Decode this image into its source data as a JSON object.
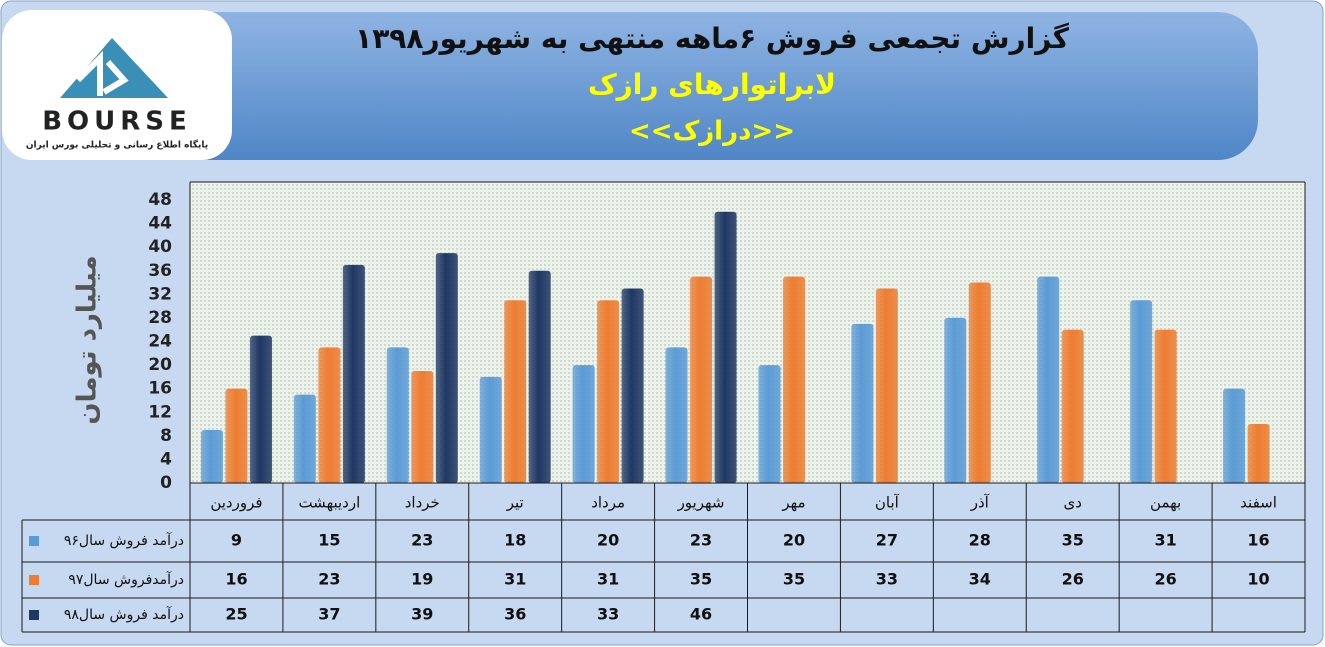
{
  "chart_data": {
    "type": "bar",
    "title": "گزارش تجمعی فروش ۶ماهه منتهی به شهریور۱۳۹۸",
    "subtitle": "لابراتوارهای رازک",
    "annotation": "<<درازک>>",
    "y_label": "میلیارد تومان",
    "categories": [
      "فروردین",
      "اردیبهشت",
      "خرداد",
      "تیر",
      "مرداد",
      "شهریور",
      "مهر",
      "آبان",
      "آذر",
      "دی",
      "بهمن",
      "اسفند"
    ],
    "series": [
      {
        "name": "درآمد فروش سال۹۶",
        "color": "#5b9bd5",
        "values": [
          9,
          15,
          23,
          18,
          20,
          23,
          20,
          27,
          28,
          35,
          31,
          16
        ]
      },
      {
        "name": "درآمدفروش سال۹۷",
        "color": "#ed7d31",
        "values": [
          16,
          23,
          19,
          31,
          31,
          35,
          35,
          33,
          34,
          26,
          26,
          10
        ]
      },
      {
        "name": "درآمد فروش سال۹۸",
        "color": "#1f3864",
        "values": [
          25,
          37,
          39,
          36,
          33,
          46,
          null,
          null,
          null,
          null,
          null,
          null
        ]
      }
    ],
    "ylim": [
      0,
      48
    ],
    "yticks": [
      0,
      4,
      8,
      12,
      16,
      20,
      24,
      28,
      32,
      36,
      40,
      44,
      48
    ],
    "grid": false
  },
  "logo": {
    "name": "BOURSE",
    "tagline": "پایگاه اطلاع رسانی و تحلیلی بورس ایران"
  }
}
